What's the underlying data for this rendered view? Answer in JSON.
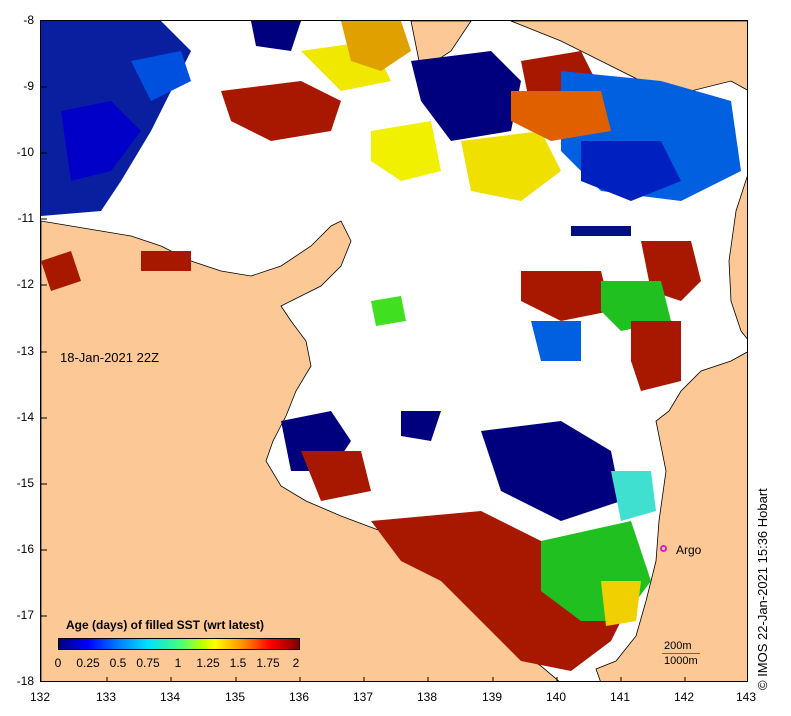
{
  "map": {
    "title_label": "18-Jan-2021 22Z",
    "credit": "© IMOS 22-Jan-2021 15:36 Hobart",
    "x_ticks": [
      "132",
      "133",
      "134",
      "135",
      "136",
      "137",
      "138",
      "139",
      "140",
      "141",
      "142",
      "143"
    ],
    "y_ticks": [
      "-8",
      "-9",
      "-10",
      "-11",
      "-12",
      "-13",
      "-14",
      "-15",
      "-16",
      "-17",
      "-18"
    ],
    "argo_label": "Argo",
    "land_color": "#fbc896",
    "ocean_color": "#ffffff"
  },
  "legend": {
    "title": "Age (days) of filled SST (wrt latest)",
    "ticks": [
      "0",
      "0.25",
      "0.5",
      "0.75",
      "1",
      "1.25",
      "1.5",
      "1.75",
      "2"
    ]
  },
  "depth_key": {
    "line1": "200m",
    "line2": "1000m"
  }
}
